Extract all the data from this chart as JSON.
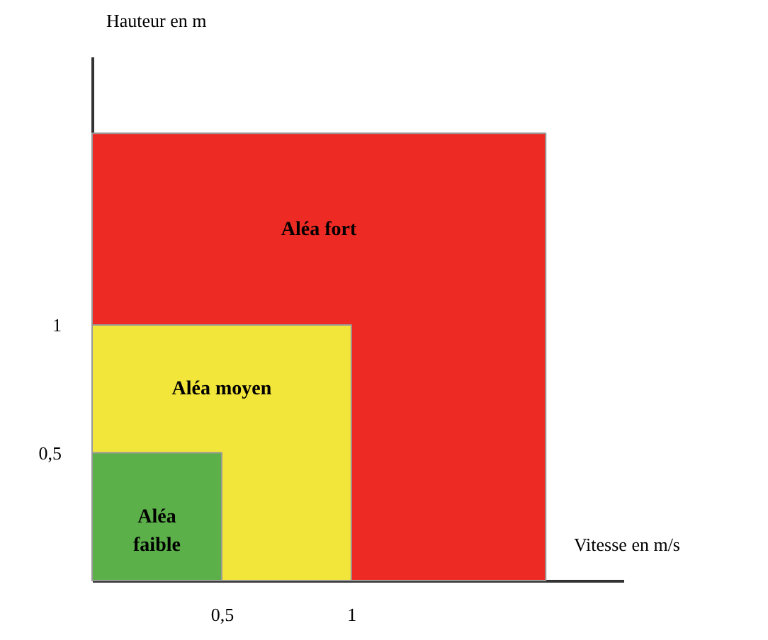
{
  "chart_data": {
    "type": "area",
    "xlabel": "Vitesse en m/s",
    "ylabel": "Hauteur en m",
    "xlim": [
      0,
      2.05
    ],
    "ylim": [
      0,
      2.05
    ],
    "xticks": [
      {
        "value": 0.5,
        "label": "0,5"
      },
      1
    ],
    "yticks": [
      {
        "value": 0.5,
        "label": "0,5"
      },
      1
    ],
    "grid": false,
    "series": [
      {
        "name": "Aléa fort",
        "color": "#ee2a24",
        "x": [
          0,
          1.75
        ],
        "values": [
          1.75,
          1.75
        ]
      },
      {
        "name": "Aléa moyen",
        "color": "#f2e63a",
        "x": [
          0,
          1
        ],
        "values": [
          1,
          1
        ]
      },
      {
        "name": "Aléa faible",
        "color": "#5cb04a",
        "x": [
          0,
          0.5
        ],
        "values": [
          0.5,
          0.5
        ]
      }
    ]
  }
}
